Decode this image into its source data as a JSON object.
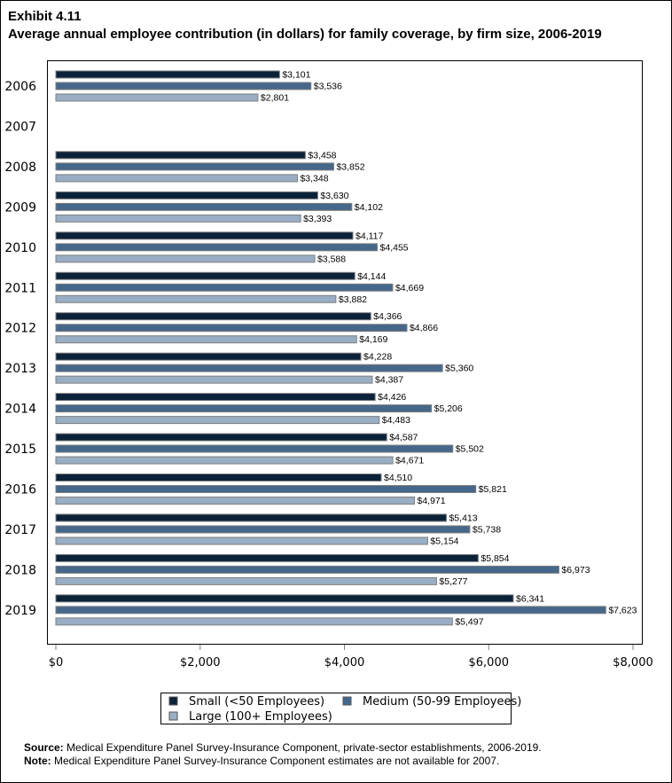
{
  "chart_data": {
    "type": "bar",
    "orientation": "horizontal",
    "exhibit": "Exhibit 4.11",
    "title": "Average annual employee contribution (in dollars) for family coverage, by firm size, 2006-2019",
    "categories": [
      "2006",
      "2007",
      "2008",
      "2009",
      "2010",
      "2011",
      "2012",
      "2013",
      "2014",
      "2015",
      "2016",
      "2017",
      "2018",
      "2019"
    ],
    "series": [
      {
        "name": "Small (<50 Employees)",
        "color": "#0b2239",
        "values": [
          3101,
          null,
          3458,
          3630,
          4117,
          4144,
          4366,
          4228,
          4426,
          4587,
          4510,
          5413,
          5854,
          6341
        ]
      },
      {
        "name": "Medium (50-99 Employees)",
        "color": "#45678a",
        "values": [
          3536,
          null,
          3852,
          4102,
          4455,
          4669,
          4866,
          5360,
          5206,
          5502,
          5821,
          5738,
          6973,
          7623
        ]
      },
      {
        "name": "Large (100+ Employees)",
        "color": "#99aec4",
        "values": [
          2801,
          null,
          3348,
          3393,
          3588,
          3882,
          4169,
          4387,
          4483,
          4671,
          4971,
          5154,
          5277,
          5497
        ]
      }
    ],
    "xlim": [
      0,
      8000
    ],
    "xticks": [
      0,
      2000,
      4000,
      6000,
      8000
    ],
    "xtick_labels": [
      "$0",
      "$2,000",
      "$4,000",
      "$6,000",
      "$8,000"
    ],
    "grid": false,
    "legend_position": "bottom",
    "data_labels": true
  },
  "footer": {
    "source_label": "Source:",
    "source_text": " Medical Expenditure Panel Survey-Insurance Component, private-sector establishments, 2006-2019.",
    "note_label": "Note:",
    "note_text": " Medical Expenditure Panel Survey-Insurance Component estimates are not available for 2007."
  }
}
